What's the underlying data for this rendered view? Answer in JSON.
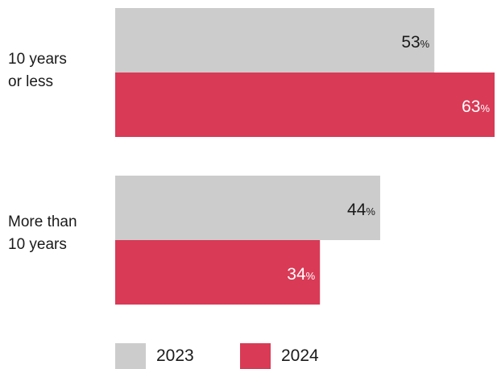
{
  "chart_data": {
    "type": "bar",
    "orientation": "horizontal",
    "categories": [
      "10 years\nor less",
      "More than\n10 years"
    ],
    "series": [
      {
        "name": "2023",
        "values": [
          53,
          44
        ],
        "color": "#cccccc",
        "label_color": "#1a1a1a"
      },
      {
        "name": "2024",
        "values": [
          63,
          34
        ],
        "color": "#d93a56",
        "label_color": "#ffffff"
      }
    ],
    "value_suffix": "%",
    "xlim": [
      0,
      63
    ],
    "grid": false,
    "legend_position": "bottom"
  }
}
